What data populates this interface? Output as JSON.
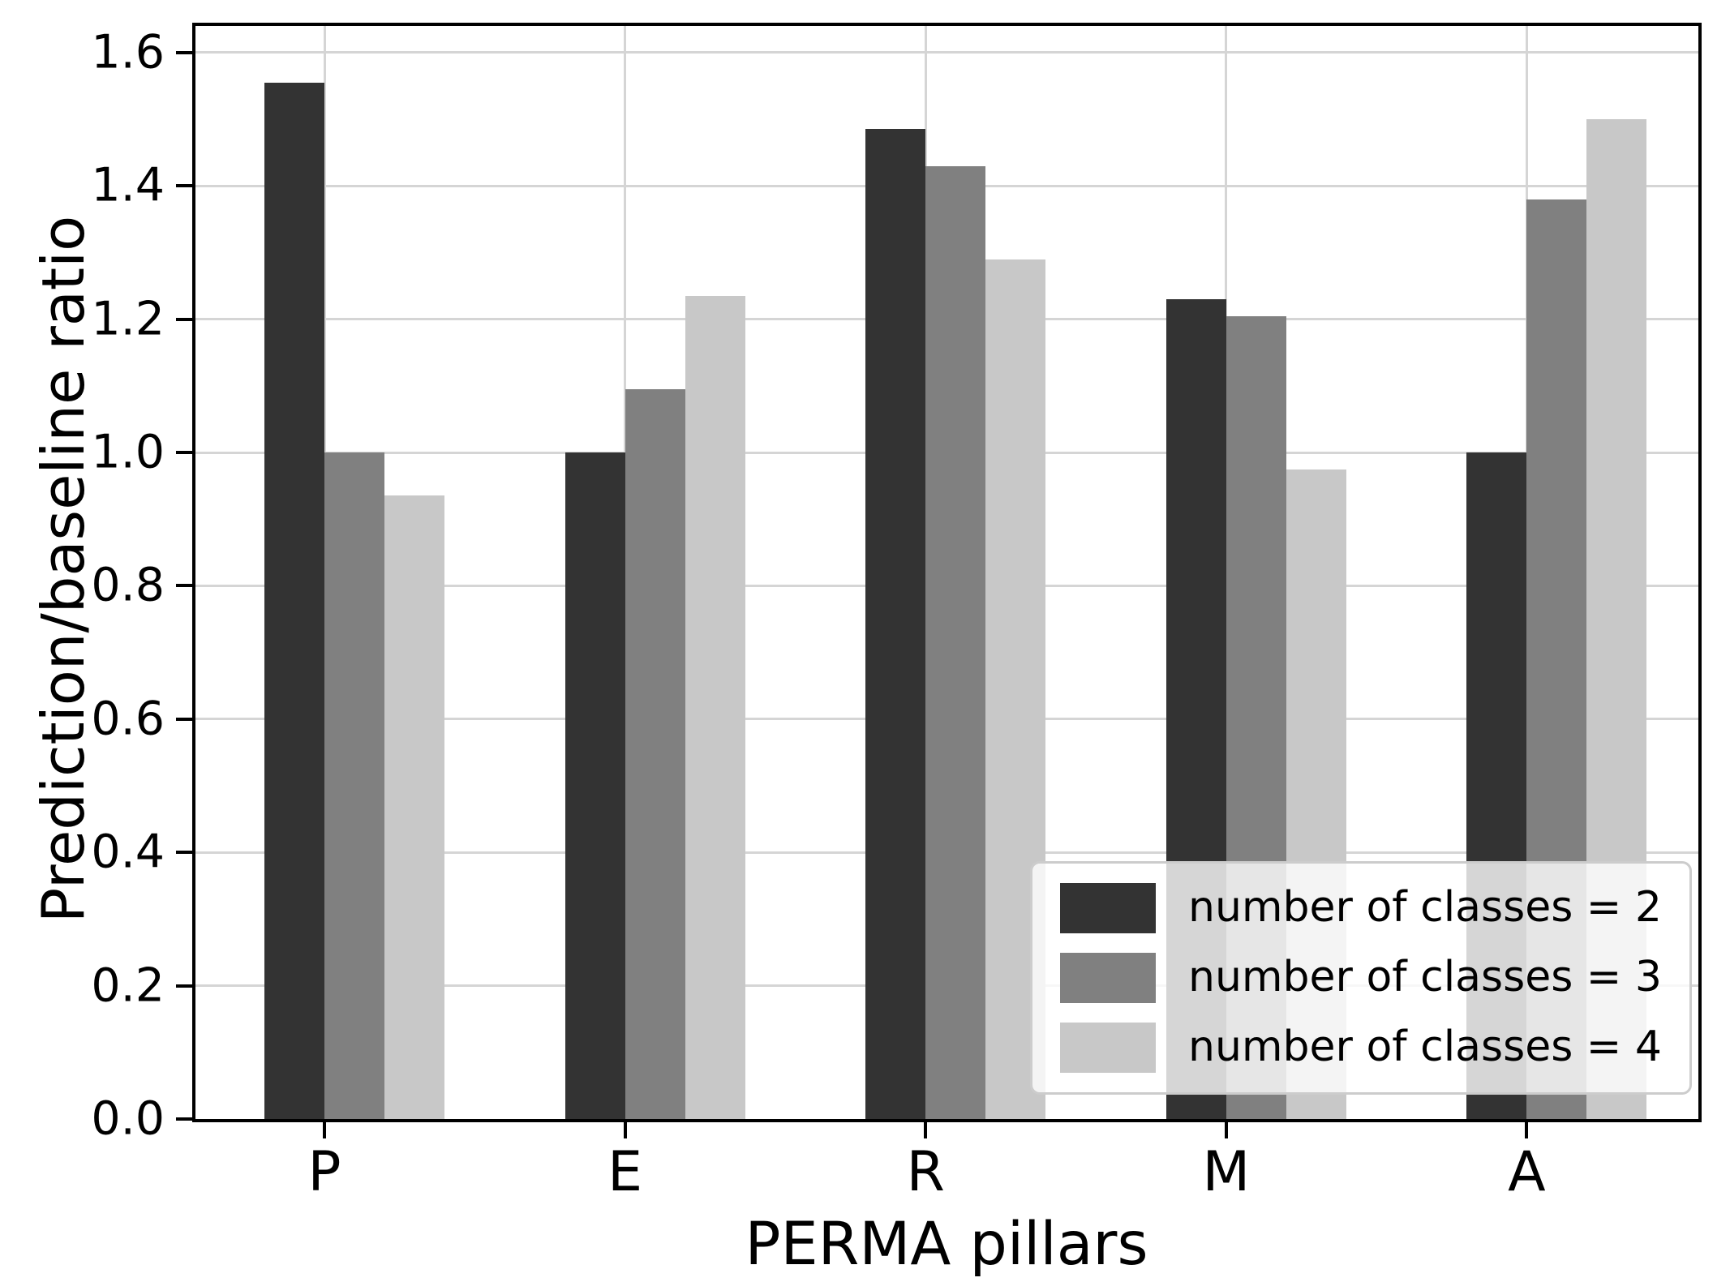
{
  "chart_data": {
    "type": "bar",
    "title": "",
    "categories": [
      "P",
      "E",
      "R",
      "M",
      "A"
    ],
    "series": [
      {
        "name": "number of classes = 2",
        "color": "#333333",
        "values": [
          1.555,
          1.0,
          1.485,
          1.23,
          1.0
        ]
      },
      {
        "name": "number of classes = 3",
        "color": "#808080",
        "values": [
          1.0,
          1.095,
          1.43,
          1.205,
          1.38
        ]
      },
      {
        "name": "number of classes = 4",
        "color": "#c8c8c8",
        "values": [
          0.935,
          1.235,
          1.29,
          0.975,
          1.5
        ]
      }
    ],
    "xlabel": "PERMA pillars",
    "ylabel": "Prediction/baseline ratio",
    "ylim": [
      0,
      1.64
    ],
    "ytick_labels": [
      "0.0",
      "0.2",
      "0.4",
      "0.6",
      "0.8",
      "1.0",
      "1.2",
      "1.4",
      "1.6"
    ],
    "ytick_values": [
      0.0,
      0.2,
      0.4,
      0.6,
      0.8,
      1.0,
      1.2,
      1.4,
      1.6
    ],
    "grid": "both",
    "grid_color": "#d5d5d5",
    "legend_position": "lower right"
  }
}
